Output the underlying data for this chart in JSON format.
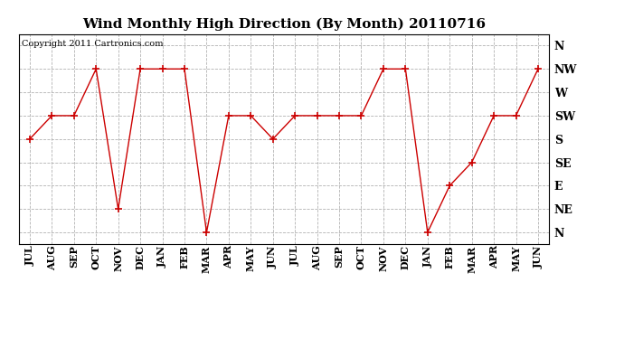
{
  "title": "Wind Monthly High Direction (By Month) 20110716",
  "copyright": "Copyright 2011 Cartronics.com",
  "x_labels": [
    "JUL",
    "AUG",
    "SEP",
    "OCT",
    "NOV",
    "DEC",
    "JAN",
    "FEB",
    "MAR",
    "APR",
    "MAY",
    "JUN",
    "JUL",
    "AUG",
    "SEP",
    "OCT",
    "NOV",
    "DEC",
    "JAN",
    "FEB",
    "MAR",
    "APR",
    "MAY",
    "JUN"
  ],
  "y_labels": [
    "N",
    "NE",
    "E",
    "SE",
    "S",
    "SW",
    "W",
    "NW",
    "N"
  ],
  "y_numeric": [
    4,
    5,
    5,
    7,
    1,
    7,
    7,
    7,
    0,
    5,
    5,
    4,
    5,
    5,
    5,
    5,
    7,
    7,
    0,
    2,
    3,
    5,
    5,
    7
  ],
  "line_color": "#cc0000",
  "marker": "+",
  "marker_size": 6,
  "marker_color": "#cc0000",
  "bg_color": "#ffffff",
  "grid_color": "#aaaaaa",
  "title_fontsize": 11,
  "copyright_fontsize": 7,
  "tick_fontsize": 8,
  "ytick_fontsize": 9
}
